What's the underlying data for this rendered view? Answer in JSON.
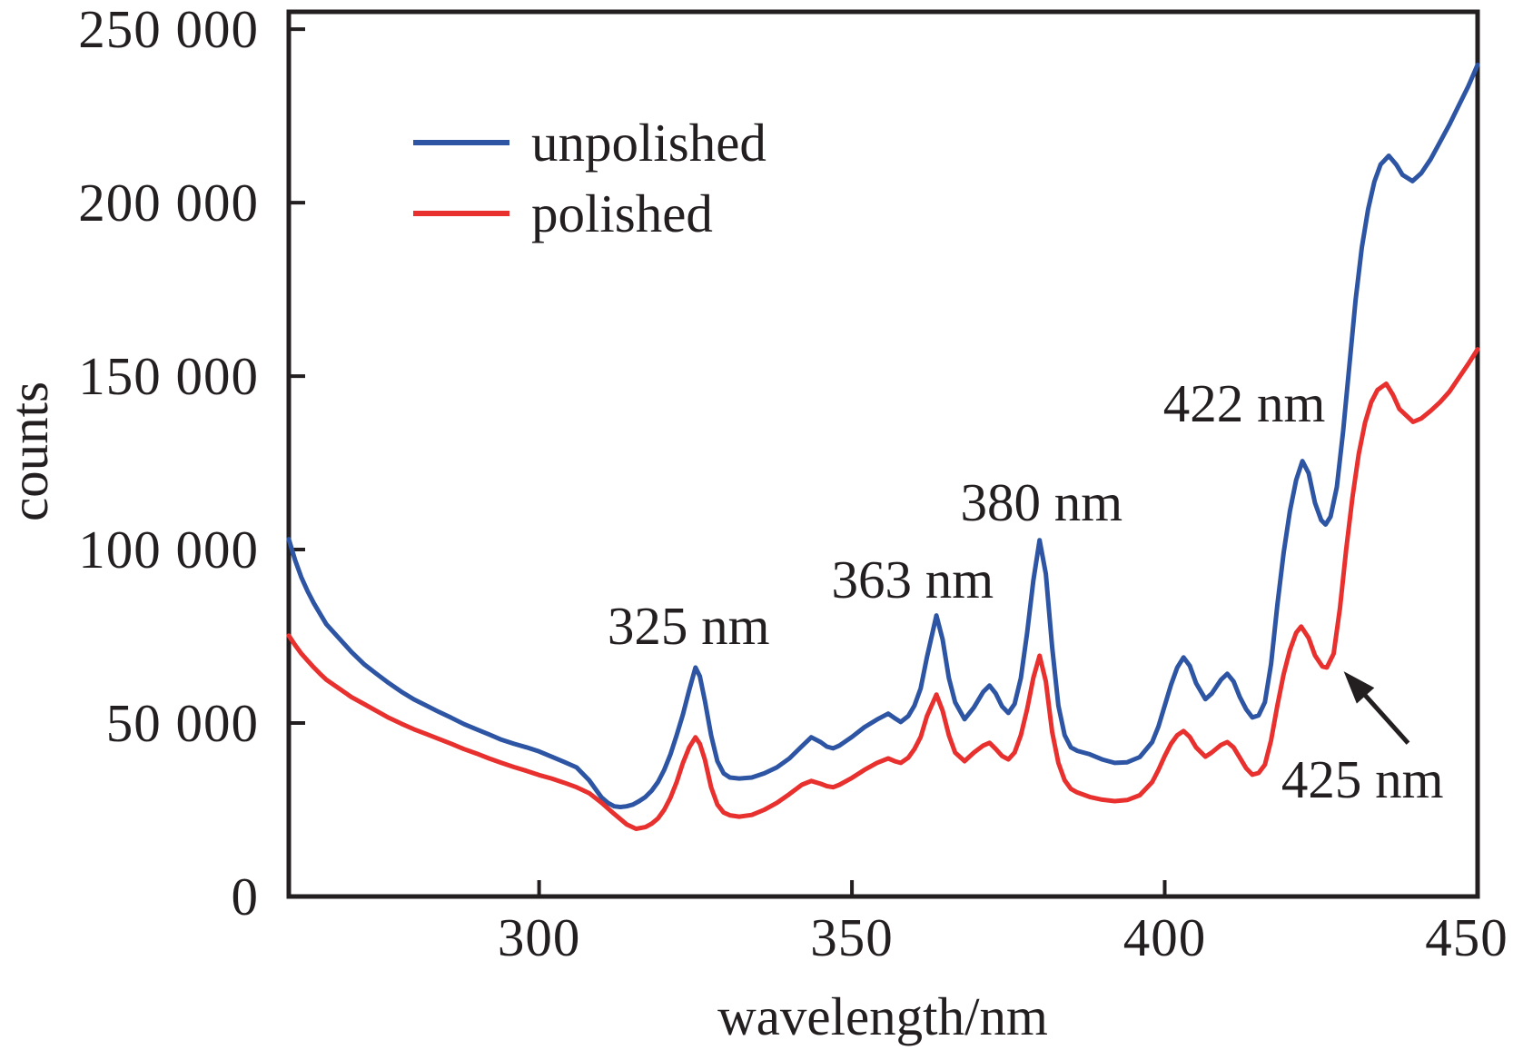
{
  "chart_data": {
    "type": "line",
    "title": "",
    "xlabel": "wavelength/nm",
    "ylabel": "counts",
    "xlim": [
      260,
      450
    ],
    "ylim": [
      0,
      255000
    ],
    "grid": false,
    "frame": true,
    "axis_color": "#231f20",
    "background_color": "#ffffff",
    "xticks": [
      {
        "value": 300,
        "label": "300"
      },
      {
        "value": 350,
        "label": "350"
      },
      {
        "value": 400,
        "label": "400"
      },
      {
        "value": 450,
        "label": "450"
      }
    ],
    "yticks": [
      {
        "value": 0,
        "label": "0"
      },
      {
        "value": 50000,
        "label": "50 000"
      },
      {
        "value": 100000,
        "label": "100 000"
      },
      {
        "value": 150000,
        "label": "150 000"
      },
      {
        "value": 200000,
        "label": "200 000"
      },
      {
        "value": 250000,
        "label": "250 000"
      }
    ],
    "legend": {
      "position": "upper-left-inside",
      "items": [
        {
          "label": "unpolished",
          "color": "#2d55a3"
        },
        {
          "label": "polished",
          "color": "#e8302e"
        }
      ]
    },
    "annotations": [
      {
        "label": "325 nm",
        "x": 323.9,
        "y": 78000
      },
      {
        "label": "363 nm",
        "x": 359.7,
        "y": 91400
      },
      {
        "label": "380 nm",
        "x": 380.3,
        "y": 113600
      },
      {
        "label": "422 nm",
        "x": 412.7,
        "y": 142200
      },
      {
        "label": "425 nm",
        "x": 431.6,
        "y": 33800,
        "arrow": {
          "from": [
            438.9,
            44200
          ],
          "to": [
            428.6,
            64900
          ]
        }
      }
    ],
    "series": [
      {
        "name": "unpolished",
        "color": "#2d55a3",
        "points": [
          [
            260,
            103000
          ],
          [
            261,
            97000
          ],
          [
            262,
            92000
          ],
          [
            263,
            88000
          ],
          [
            264,
            84500
          ],
          [
            265,
            81500
          ],
          [
            266,
            78500
          ],
          [
            268,
            74500
          ],
          [
            270,
            70500
          ],
          [
            272,
            67000
          ],
          [
            274,
            64200
          ],
          [
            276,
            61500
          ],
          [
            278,
            59000
          ],
          [
            280,
            56800
          ],
          [
            282,
            55000
          ],
          [
            284,
            53200
          ],
          [
            286,
            51500
          ],
          [
            288,
            49700
          ],
          [
            290,
            48200
          ],
          [
            292,
            46700
          ],
          [
            294,
            45200
          ],
          [
            296,
            44000
          ],
          [
            298,
            43000
          ],
          [
            300,
            41800
          ],
          [
            302,
            40300
          ],
          [
            304,
            38800
          ],
          [
            306,
            37200
          ],
          [
            308,
            33500
          ],
          [
            310,
            28500
          ],
          [
            311,
            27000
          ],
          [
            312,
            26000
          ],
          [
            313,
            25800
          ],
          [
            314,
            26000
          ],
          [
            315,
            26500
          ],
          [
            316,
            27500
          ],
          [
            317,
            28700
          ],
          [
            318,
            30500
          ],
          [
            319,
            33000
          ],
          [
            320,
            36500
          ],
          [
            321,
            41000
          ],
          [
            322,
            46500
          ],
          [
            323,
            52500
          ],
          [
            324,
            59500
          ],
          [
            325,
            66000
          ],
          [
            325.7,
            63500
          ],
          [
            326.5,
            56500
          ],
          [
            327.5,
            46500
          ],
          [
            328.5,
            39000
          ],
          [
            329.5,
            35500
          ],
          [
            330.5,
            34300
          ],
          [
            332,
            34000
          ],
          [
            334,
            34300
          ],
          [
            336,
            35500
          ],
          [
            338,
            37200
          ],
          [
            340,
            39800
          ],
          [
            342,
            43300
          ],
          [
            343.5,
            45900
          ],
          [
            345,
            44500
          ],
          [
            346,
            43200
          ],
          [
            347,
            42700
          ],
          [
            348,
            43500
          ],
          [
            350,
            46000
          ],
          [
            352,
            48800
          ],
          [
            354,
            51000
          ],
          [
            355.8,
            52700
          ],
          [
            357,
            51200
          ],
          [
            357.8,
            50300
          ],
          [
            359,
            52000
          ],
          [
            360,
            55000
          ],
          [
            361,
            60000
          ],
          [
            362,
            69000
          ],
          [
            363.5,
            81000
          ],
          [
            364.5,
            74000
          ],
          [
            365.5,
            63000
          ],
          [
            366.5,
            56000
          ],
          [
            368,
            51100
          ],
          [
            369.5,
            54500
          ],
          [
            371,
            59000
          ],
          [
            372,
            60800
          ],
          [
            373,
            58500
          ],
          [
            374,
            54800
          ],
          [
            375,
            52900
          ],
          [
            376,
            55500
          ],
          [
            377,
            63000
          ],
          [
            378,
            76000
          ],
          [
            379,
            91000
          ],
          [
            380,
            102700
          ],
          [
            381,
            93000
          ],
          [
            382,
            72000
          ],
          [
            383,
            55000
          ],
          [
            384,
            46500
          ],
          [
            385,
            43000
          ],
          [
            386,
            42000
          ],
          [
            388,
            41000
          ],
          [
            390,
            39500
          ],
          [
            392,
            38500
          ],
          [
            394,
            38700
          ],
          [
            396,
            40200
          ],
          [
            398,
            44500
          ],
          [
            399,
            49000
          ],
          [
            400,
            55000
          ],
          [
            401,
            61000
          ],
          [
            402,
            66000
          ],
          [
            403,
            68900
          ],
          [
            404,
            66500
          ],
          [
            405,
            61500
          ],
          [
            406.5,
            56900
          ],
          [
            407.5,
            58500
          ],
          [
            409,
            62500
          ],
          [
            410,
            64200
          ],
          [
            411,
            62000
          ],
          [
            412,
            57500
          ],
          [
            413,
            54000
          ],
          [
            414,
            51600
          ],
          [
            415,
            52200
          ],
          [
            416,
            56000
          ],
          [
            417,
            67000
          ],
          [
            418,
            84000
          ],
          [
            419,
            99000
          ],
          [
            420,
            111000
          ],
          [
            421,
            120000
          ],
          [
            422,
            125500
          ],
          [
            423,
            122000
          ],
          [
            424,
            113500
          ],
          [
            425,
            108500
          ],
          [
            425.7,
            107200
          ],
          [
            426.5,
            109500
          ],
          [
            427.5,
            118000
          ],
          [
            428.5,
            134000
          ],
          [
            429.5,
            153000
          ],
          [
            430.5,
            172000
          ],
          [
            431.5,
            187000
          ],
          [
            432.5,
            198000
          ],
          [
            433.5,
            206000
          ],
          [
            434.5,
            211000
          ],
          [
            435.8,
            213500
          ],
          [
            437,
            211000
          ],
          [
            438,
            208000
          ],
          [
            439.6,
            206200
          ],
          [
            441,
            208500
          ],
          [
            442.5,
            212500
          ],
          [
            444,
            217500
          ],
          [
            445.5,
            222500
          ],
          [
            447,
            228000
          ],
          [
            448.5,
            233500
          ],
          [
            450,
            239700
          ]
        ]
      },
      {
        "name": "polished",
        "color": "#e8302e",
        "points": [
          [
            260,
            75200
          ],
          [
            261,
            72500
          ],
          [
            262,
            70000
          ],
          [
            263,
            68000
          ],
          [
            264,
            66000
          ],
          [
            265,
            64200
          ],
          [
            266,
            62500
          ],
          [
            268,
            60000
          ],
          [
            270,
            57500
          ],
          [
            272,
            55500
          ],
          [
            274,
            53500
          ],
          [
            276,
            51500
          ],
          [
            278,
            49800
          ],
          [
            280,
            48200
          ],
          [
            282,
            46800
          ],
          [
            284,
            45400
          ],
          [
            286,
            44000
          ],
          [
            288,
            42500
          ],
          [
            290,
            41200
          ],
          [
            292,
            39800
          ],
          [
            294,
            38500
          ],
          [
            296,
            37300
          ],
          [
            298,
            36200
          ],
          [
            300,
            35000
          ],
          [
            302,
            34000
          ],
          [
            304,
            32800
          ],
          [
            306,
            31500
          ],
          [
            308,
            29800
          ],
          [
            310,
            27000
          ],
          [
            312,
            23800
          ],
          [
            314,
            20800
          ],
          [
            315.5,
            19500
          ],
          [
            317,
            20000
          ],
          [
            318,
            21000
          ],
          [
            319,
            22500
          ],
          [
            320,
            25000
          ],
          [
            321,
            28500
          ],
          [
            322,
            33000
          ],
          [
            323,
            38500
          ],
          [
            324,
            43000
          ],
          [
            325,
            45900
          ],
          [
            325.7,
            44000
          ],
          [
            326.5,
            39500
          ],
          [
            327.5,
            31500
          ],
          [
            328.5,
            26500
          ],
          [
            329.5,
            24200
          ],
          [
            330.5,
            23400
          ],
          [
            332,
            23000
          ],
          [
            334,
            23500
          ],
          [
            336,
            25000
          ],
          [
            338,
            27000
          ],
          [
            340,
            29500
          ],
          [
            342,
            32200
          ],
          [
            343.5,
            33300
          ],
          [
            345,
            32500
          ],
          [
            346,
            31800
          ],
          [
            347,
            31500
          ],
          [
            348,
            32200
          ],
          [
            350,
            34200
          ],
          [
            352,
            36500
          ],
          [
            354,
            38500
          ],
          [
            355.8,
            39800
          ],
          [
            357,
            38900
          ],
          [
            357.8,
            38500
          ],
          [
            359,
            40000
          ],
          [
            360,
            42500
          ],
          [
            361,
            46000
          ],
          [
            362,
            52000
          ],
          [
            363.5,
            58200
          ],
          [
            364.5,
            53500
          ],
          [
            365.5,
            46500
          ],
          [
            366.5,
            41500
          ],
          [
            368,
            39000
          ],
          [
            369.5,
            41500
          ],
          [
            371,
            43500
          ],
          [
            372,
            44300
          ],
          [
            373,
            42500
          ],
          [
            374,
            40500
          ],
          [
            375,
            39500
          ],
          [
            376,
            41500
          ],
          [
            377,
            46500
          ],
          [
            378,
            54000
          ],
          [
            379,
            63000
          ],
          [
            380,
            69400
          ],
          [
            381,
            62000
          ],
          [
            382,
            47500
          ],
          [
            383,
            38500
          ],
          [
            384,
            33500
          ],
          [
            385,
            31000
          ],
          [
            386,
            30000
          ],
          [
            388,
            28700
          ],
          [
            390,
            27900
          ],
          [
            392,
            27500
          ],
          [
            394,
            27800
          ],
          [
            396,
            29200
          ],
          [
            398,
            33000
          ],
          [
            399,
            36500
          ],
          [
            400,
            40500
          ],
          [
            401,
            44000
          ],
          [
            402,
            46500
          ],
          [
            403,
            47700
          ],
          [
            404,
            46000
          ],
          [
            405,
            43000
          ],
          [
            406.5,
            40300
          ],
          [
            407.5,
            41500
          ],
          [
            409,
            43700
          ],
          [
            410,
            44500
          ],
          [
            411,
            43000
          ],
          [
            412,
            40000
          ],
          [
            413,
            37000
          ],
          [
            414,
            35100
          ],
          [
            415,
            35600
          ],
          [
            416,
            38000
          ],
          [
            417,
            45000
          ],
          [
            418,
            55000
          ],
          [
            419,
            64000
          ],
          [
            420,
            71000
          ],
          [
            421,
            76000
          ],
          [
            421.8,
            77800
          ],
          [
            423,
            74500
          ],
          [
            424,
            69500
          ],
          [
            425.2,
            66300
          ],
          [
            425.9,
            66000
          ],
          [
            427,
            70000
          ],
          [
            428,
            83000
          ],
          [
            429,
            100000
          ],
          [
            430,
            115000
          ],
          [
            431,
            127500
          ],
          [
            432,
            136500
          ],
          [
            433,
            142500
          ],
          [
            434,
            146000
          ],
          [
            435.4,
            147800
          ],
          [
            436.5,
            144500
          ],
          [
            437.5,
            140500
          ],
          [
            439.7,
            136800
          ],
          [
            441,
            137800
          ],
          [
            442.5,
            140000
          ],
          [
            444,
            142500
          ],
          [
            445.5,
            145500
          ],
          [
            447,
            149500
          ],
          [
            448.5,
            153500
          ],
          [
            450,
            157700
          ]
        ]
      }
    ]
  }
}
